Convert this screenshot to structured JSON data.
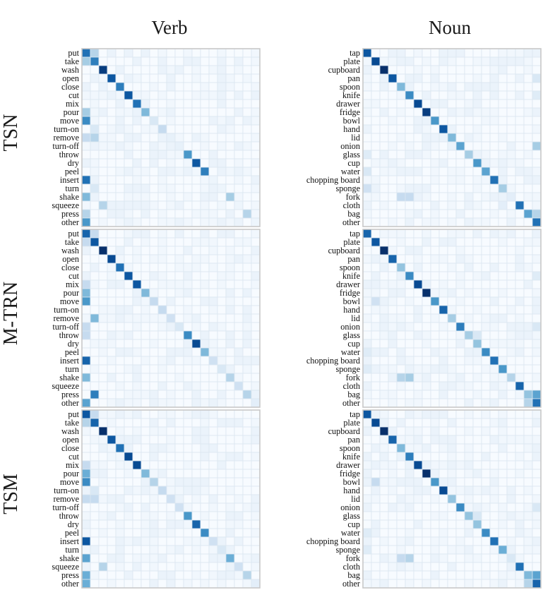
{
  "chart_data": {
    "type": "heatmap",
    "column_titles": [
      "Verb",
      "Noun"
    ],
    "row_titles": [
      "TSN",
      "M-TRN",
      "TSM"
    ],
    "verb_labels": [
      "put",
      "take",
      "wash",
      "open",
      "close",
      "cut",
      "mix",
      "pour",
      "move",
      "turn-on",
      "remove",
      "turn-off",
      "throw",
      "dry",
      "peel",
      "insert",
      "turn",
      "shake",
      "squeeze",
      "press",
      "other"
    ],
    "noun_labels": [
      "tap",
      "plate",
      "cupboard",
      "pan",
      "spoon",
      "knife",
      "drawer",
      "fridge",
      "bowl",
      "hand",
      "lid",
      "onion",
      "glass",
      "cup",
      "water",
      "chopping board",
      "sponge",
      "fork",
      "cloth",
      "bag",
      "other"
    ],
    "colormap": {
      "low": "#f7fbff",
      "high": "#08306b"
    },
    "color_range": [
      0,
      1
    ],
    "matrices": [
      {
        "model": "TSN",
        "task": "Verb",
        "diagonal": [
          0.75,
          0.7,
          0.95,
          0.85,
          0.7,
          0.85,
          0.75,
          0.45,
          0.15,
          0.25,
          0.08,
          0.08,
          0.6,
          0.85,
          0.7,
          0.05,
          0.05,
          0.35,
          0.05,
          0.3,
          0.05
        ],
        "off_diagonal": [
          {
            "row": "put",
            "col": "take",
            "v": 0.3
          },
          {
            "row": "take",
            "col": "put",
            "v": 0.35
          },
          {
            "row": "move",
            "col": "put",
            "v": 0.65
          },
          {
            "row": "insert",
            "col": "put",
            "v": 0.75
          },
          {
            "row": "shake",
            "col": "put",
            "v": 0.45
          },
          {
            "row": "other",
            "col": "put",
            "v": 0.6
          },
          {
            "row": "pour",
            "col": "put",
            "v": 0.35
          },
          {
            "row": "remove",
            "col": "put",
            "v": 0.25
          },
          {
            "row": "remove",
            "col": "take",
            "v": 0.3
          },
          {
            "row": "press",
            "col": "put",
            "v": 0.3
          },
          {
            "row": "squeeze",
            "col": "wash",
            "v": 0.3
          },
          {
            "row": "turn-on",
            "col": "take",
            "v": 0.15
          },
          {
            "row": "turn",
            "col": "take",
            "v": 0.15
          }
        ]
      },
      {
        "model": "TSN",
        "task": "Noun",
        "diagonal": [
          0.85,
          0.9,
          1.0,
          0.85,
          0.45,
          0.65,
          0.9,
          0.95,
          0.6,
          0.85,
          0.45,
          0.55,
          0.35,
          0.6,
          0.55,
          0.75,
          0.35,
          0.1,
          0.75,
          0.55,
          0.75
        ],
        "off_diagonal": [
          {
            "row": "fork",
            "col": "spoon",
            "v": 0.25
          },
          {
            "row": "fork",
            "col": "knife",
            "v": 0.25
          },
          {
            "row": "sponge",
            "col": "tap",
            "v": 0.2
          },
          {
            "row": "onion",
            "col": "other",
            "v": 0.35
          },
          {
            "row": "bag",
            "col": "other",
            "v": 0.3
          },
          {
            "row": "pan",
            "col": "other",
            "v": 0.15
          },
          {
            "row": "water",
            "col": "tap",
            "v": 0.15
          },
          {
            "row": "glass",
            "col": "tap",
            "v": 0.12
          },
          {
            "row": "cloth",
            "col": "sponge",
            "v": 0.1
          },
          {
            "row": "knife",
            "col": "other",
            "v": 0.12
          }
        ]
      },
      {
        "model": "M-TRN",
        "task": "Verb",
        "diagonal": [
          0.8,
          0.85,
          1.0,
          0.9,
          0.75,
          0.85,
          0.85,
          0.45,
          0.25,
          0.25,
          0.2,
          0.15,
          0.65,
          0.9,
          0.45,
          0.2,
          0.15,
          0.3,
          0.2,
          0.3,
          0.1
        ],
        "off_diagonal": [
          {
            "row": "put",
            "col": "take",
            "v": 0.25
          },
          {
            "row": "take",
            "col": "put",
            "v": 0.25
          },
          {
            "row": "move",
            "col": "put",
            "v": 0.6
          },
          {
            "row": "pour",
            "col": "put",
            "v": 0.45
          },
          {
            "row": "insert",
            "col": "put",
            "v": 0.8
          },
          {
            "row": "shake",
            "col": "put",
            "v": 0.45
          },
          {
            "row": "press",
            "col": "take",
            "v": 0.7
          },
          {
            "row": "other",
            "col": "put",
            "v": 0.55
          },
          {
            "row": "remove",
            "col": "take",
            "v": 0.45
          },
          {
            "row": "mix",
            "col": "put",
            "v": 0.25
          },
          {
            "row": "turn-off",
            "col": "put",
            "v": 0.25
          },
          {
            "row": "throw",
            "col": "put",
            "v": 0.25
          }
        ]
      },
      {
        "model": "M-TRN",
        "task": "Noun",
        "diagonal": [
          0.8,
          0.85,
          1.0,
          0.8,
          0.4,
          0.65,
          0.9,
          1.0,
          0.6,
          0.8,
          0.35,
          0.7,
          0.35,
          0.4,
          0.65,
          0.75,
          0.6,
          0.3,
          0.8,
          0.4,
          0.75
        ],
        "off_diagonal": [
          {
            "row": "fork",
            "col": "spoon",
            "v": 0.3
          },
          {
            "row": "fork",
            "col": "knife",
            "v": 0.35
          },
          {
            "row": "bag",
            "col": "other",
            "v": 0.55
          },
          {
            "row": "other",
            "col": "bag",
            "v": 0.3
          },
          {
            "row": "bowl",
            "col": "plate",
            "v": 0.2
          },
          {
            "row": "sponge",
            "col": "tap",
            "v": 0.12
          },
          {
            "row": "water",
            "col": "tap",
            "v": 0.12
          },
          {
            "row": "onion",
            "col": "other",
            "v": 0.15
          },
          {
            "row": "glass",
            "col": "cup",
            "v": 0.15
          },
          {
            "row": "knife",
            "col": "other",
            "v": 0.12
          }
        ]
      },
      {
        "model": "TSM",
        "task": "Verb",
        "diagonal": [
          0.85,
          0.8,
          1.0,
          0.85,
          0.75,
          0.9,
          0.9,
          0.45,
          0.3,
          0.25,
          0.2,
          0.2,
          0.6,
          0.8,
          0.65,
          0.2,
          0.15,
          0.5,
          0.2,
          0.3,
          0.1
        ],
        "off_diagonal": [
          {
            "row": "put",
            "col": "take",
            "v": 0.25
          },
          {
            "row": "take",
            "col": "put",
            "v": 0.3
          },
          {
            "row": "move",
            "col": "put",
            "v": 0.65
          },
          {
            "row": "pour",
            "col": "put",
            "v": 0.5
          },
          {
            "row": "insert",
            "col": "put",
            "v": 0.85
          },
          {
            "row": "shake",
            "col": "put",
            "v": 0.55
          },
          {
            "row": "press",
            "col": "put",
            "v": 0.5
          },
          {
            "row": "other",
            "col": "put",
            "v": 0.5
          },
          {
            "row": "squeeze",
            "col": "wash",
            "v": 0.3
          },
          {
            "row": "remove",
            "col": "take",
            "v": 0.25
          },
          {
            "row": "remove",
            "col": "put",
            "v": 0.25
          },
          {
            "row": "mix",
            "col": "put",
            "v": 0.25
          },
          {
            "row": "turn-on",
            "col": "take",
            "v": 0.15
          }
        ]
      },
      {
        "model": "TSM",
        "task": "Noun",
        "diagonal": [
          0.85,
          0.9,
          1.0,
          0.8,
          0.45,
          0.7,
          0.9,
          1.0,
          0.6,
          0.9,
          0.4,
          0.65,
          0.4,
          0.4,
          0.65,
          0.75,
          0.5,
          0.15,
          0.75,
          0.45,
          0.8
        ],
        "off_diagonal": [
          {
            "row": "fork",
            "col": "spoon",
            "v": 0.25
          },
          {
            "row": "fork",
            "col": "knife",
            "v": 0.3
          },
          {
            "row": "bag",
            "col": "other",
            "v": 0.55
          },
          {
            "row": "other",
            "col": "bag",
            "v": 0.3
          },
          {
            "row": "bowl",
            "col": "plate",
            "v": 0.25
          },
          {
            "row": "sponge",
            "col": "tap",
            "v": 0.12
          },
          {
            "row": "water",
            "col": "tap",
            "v": 0.12
          },
          {
            "row": "onion",
            "col": "other",
            "v": 0.15
          },
          {
            "row": "glass",
            "col": "cup",
            "v": 0.15
          }
        ]
      }
    ]
  }
}
